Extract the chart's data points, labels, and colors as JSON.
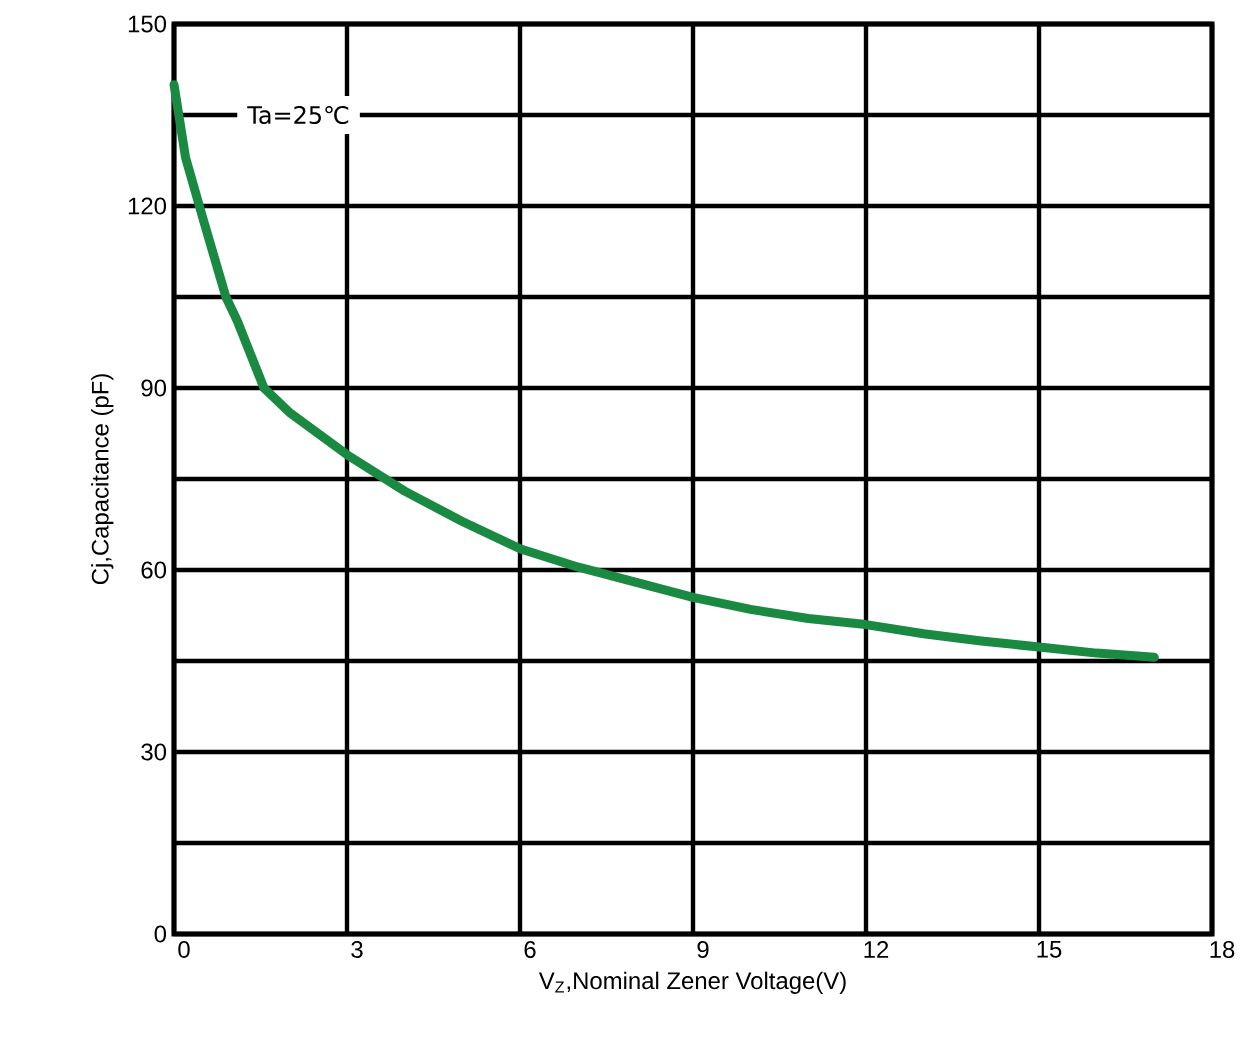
{
  "chart_data": {
    "type": "line",
    "xlabel": "V$_{Z}$,Nominal Zener Voltage(V)",
    "ylabel": "Cj,Capacitance (pF)",
    "annotations": [
      "Ta=25℃"
    ],
    "xlim": [
      0,
      18
    ],
    "ylim": [
      0,
      150
    ],
    "xticks": [
      0,
      3,
      6,
      9,
      12,
      15,
      18
    ],
    "yticks": [
      0,
      {
        "value": 15,
        "label": null
      },
      30,
      {
        "value": 45,
        "label": null
      },
      60,
      {
        "value": 75,
        "label": null
      },
      90,
      {
        "value": 105,
        "label": null
      },
      120,
      {
        "value": 135,
        "label": null
      },
      150
    ],
    "grid": true,
    "marker": "none",
    "line_style": "solid",
    "series": [
      {
        "color": "#1a8a42",
        "x": [
          0,
          0.2,
          0.5,
          0.9,
          1.1,
          1.56,
          2,
          3,
          4,
          5,
          6,
          7,
          8,
          9,
          10,
          11,
          12,
          13,
          14,
          15,
          16,
          17
        ],
        "values": [
          140,
          128,
          118,
          105,
          101,
          90,
          86,
          79,
          73,
          68,
          63.5,
          60.5,
          58,
          55.5,
          53.5,
          52,
          51,
          49.5,
          48.3,
          47.3,
          46.3,
          45.6
        ]
      }
    ]
  }
}
